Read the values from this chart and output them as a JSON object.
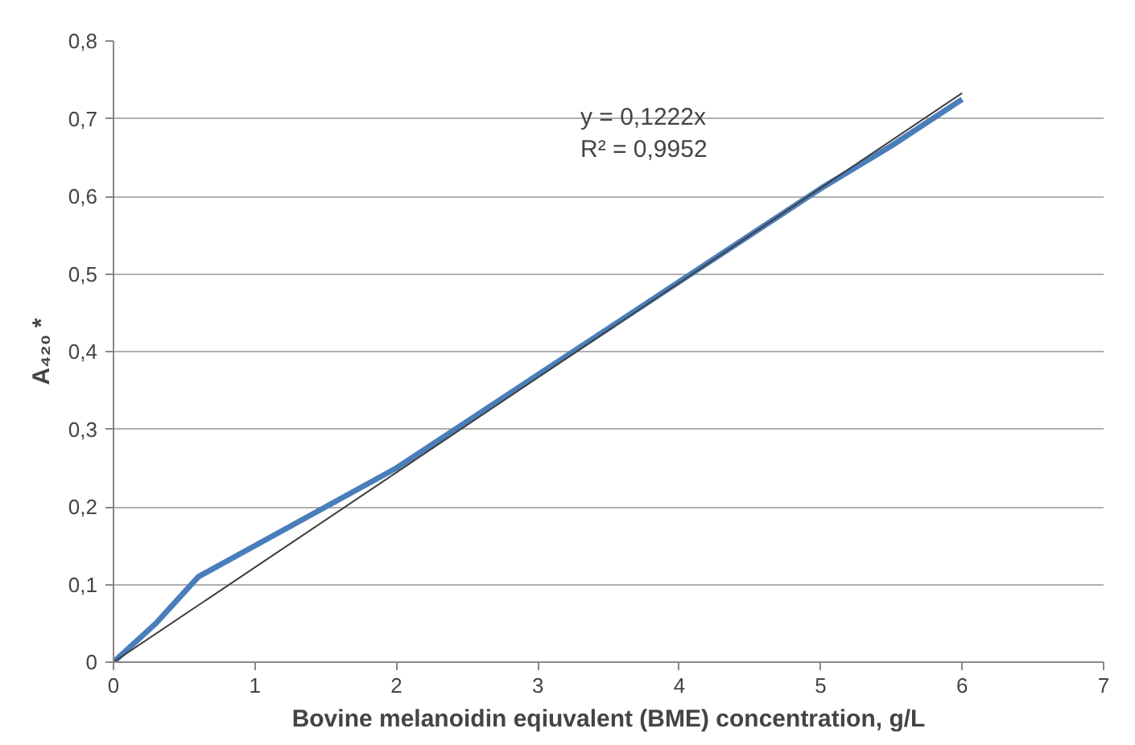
{
  "chart_data": {
    "type": "line",
    "xlabel": "Bovine melanoidin eqiuvalent (BME) concentration, g/L",
    "ylabel": "A₄₂₀ *",
    "xlim": [
      0,
      7
    ],
    "ylim": [
      0,
      0.8
    ],
    "xticks": [
      0,
      1,
      2,
      3,
      4,
      5,
      6,
      7
    ],
    "yticks": [
      {
        "value": 0,
        "label": "0"
      },
      {
        "value": 0.1,
        "label": "0,1"
      },
      {
        "value": 0.2,
        "label": "0,2"
      },
      {
        "value": 0.3,
        "label": "0,3"
      },
      {
        "value": 0.4,
        "label": "0,4"
      },
      {
        "value": 0.5,
        "label": "0,5"
      },
      {
        "value": 0.6,
        "label": "0,6"
      },
      {
        "value": 0.7,
        "label": "0,7"
      },
      {
        "value": 0.8,
        "label": "0,8"
      }
    ],
    "grid": "y",
    "marker": "none",
    "line_style": "solid",
    "series": [
      {
        "color": "#4a7ebb",
        "x": [
          0,
          0.3,
          0.6,
          1,
          1.5,
          2,
          2.5,
          3,
          3.5,
          4,
          4.5,
          5,
          5.5,
          6
        ],
        "values": [
          0,
          0.05,
          0.11,
          0.15,
          0.2,
          0.25,
          0.31,
          0.37,
          0.43,
          0.49,
          0.55,
          0.61,
          0.665,
          0.725
        ]
      },
      {
        "color": "#404040",
        "x": [
          0,
          6
        ],
        "values": [
          0,
          0.733
        ]
      }
    ],
    "annotations": [
      "y = 0,1222x",
      "R² = 0,9952"
    ]
  }
}
